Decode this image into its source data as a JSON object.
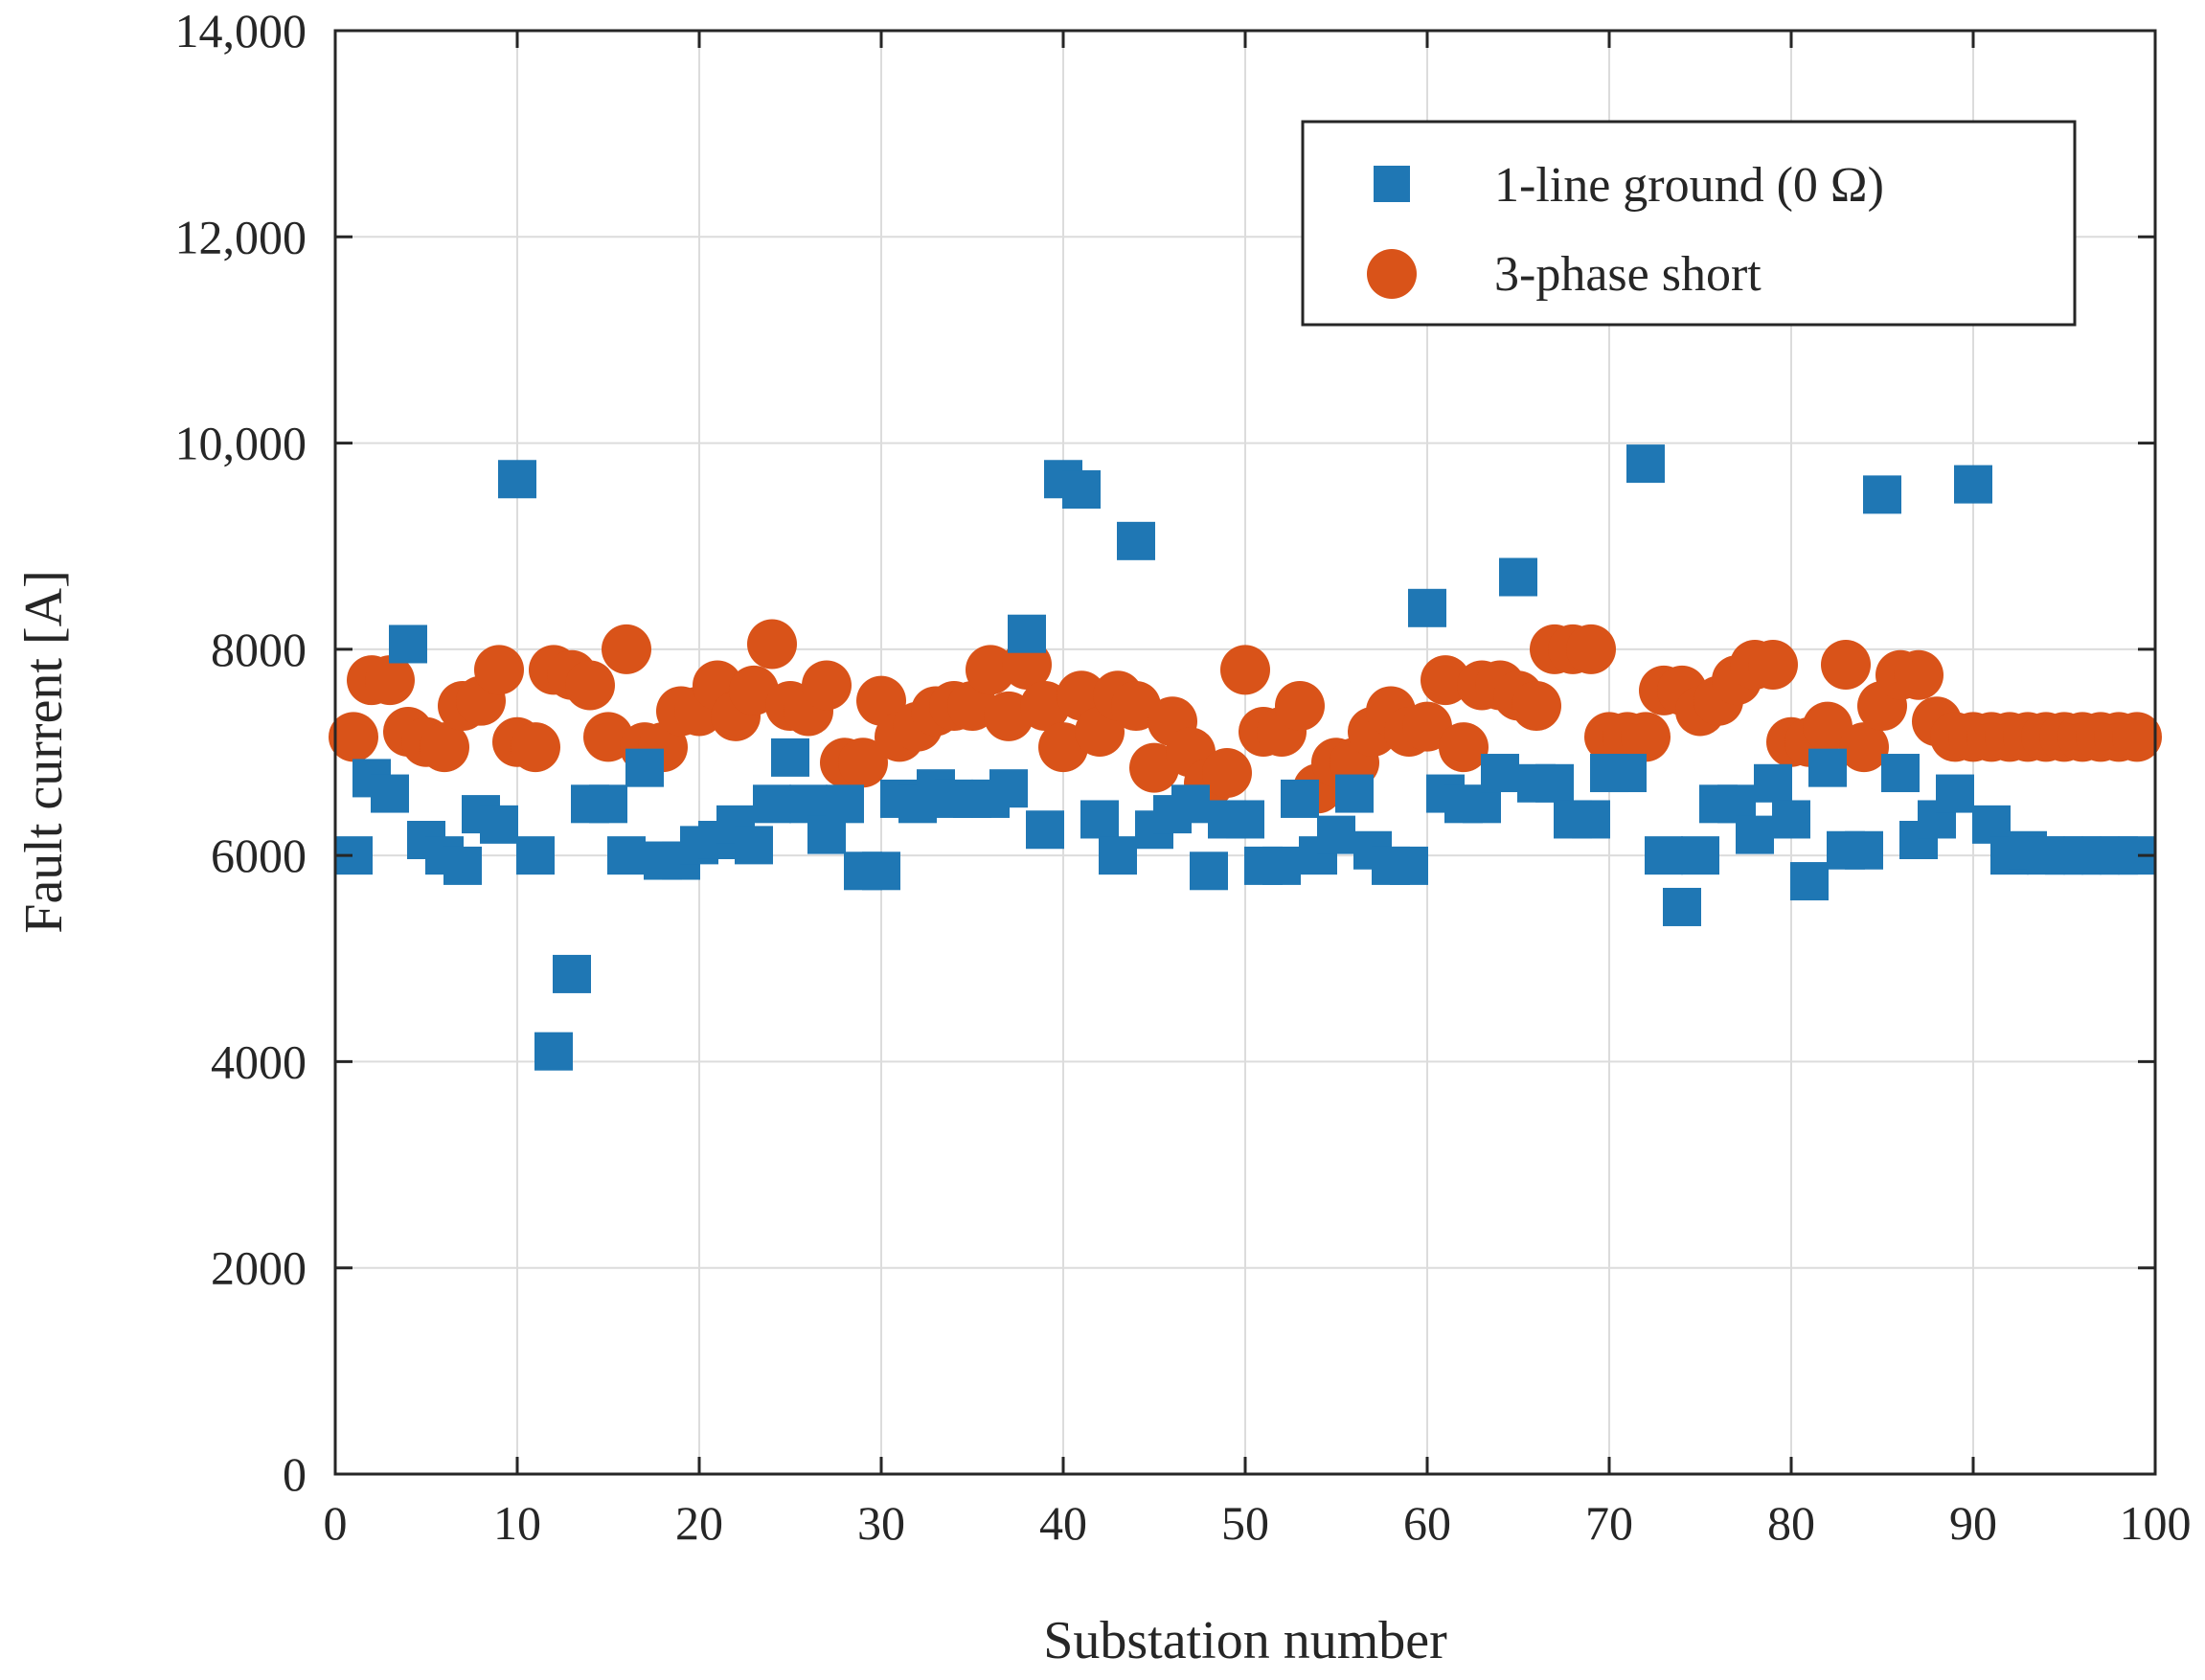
{
  "chart_data": {
    "type": "scatter",
    "title": "",
    "xlabel": "Substation number",
    "ylabel": "Fault current [A]",
    "xlim": [
      0,
      100
    ],
    "ylim": [
      0,
      14000
    ],
    "grid": true,
    "legend_position": "top-right",
    "x_ticks": [
      0,
      10,
      20,
      30,
      40,
      50,
      60,
      70,
      80,
      90,
      100
    ],
    "x_tick_labels": [
      "0",
      "10",
      "20",
      "30",
      "40",
      "50",
      "60",
      "70",
      "80",
      "90",
      "100"
    ],
    "y_ticks": [
      0,
      2000,
      4000,
      6000,
      8000,
      10000,
      12000,
      14000
    ],
    "y_tick_labels": [
      "0",
      "2000",
      "4000",
      "6000",
      "8000",
      "10,000",
      "12,000",
      "14,000"
    ],
    "series": [
      {
        "name": "1-line ground (0 Ω)",
        "marker": "square",
        "color": "#1f77b4",
        "x": [
          1,
          2,
          3,
          4,
          5,
          6,
          7,
          8,
          9,
          10,
          11,
          12,
          13,
          14,
          15,
          16,
          17,
          18,
          19,
          20,
          21,
          22,
          23,
          24,
          25,
          26,
          27,
          28,
          29,
          30,
          31,
          32,
          33,
          34,
          35,
          36,
          37,
          38,
          39,
          40,
          41,
          42,
          43,
          44,
          45,
          46,
          47,
          48,
          49,
          50,
          51,
          52,
          53,
          54,
          55,
          56,
          57,
          58,
          59,
          60,
          61,
          62,
          63,
          64,
          65,
          66,
          67,
          68,
          69,
          70,
          71,
          72,
          73,
          74,
          75,
          76,
          77,
          78,
          79,
          80,
          81,
          82,
          83,
          84,
          85,
          86,
          87,
          88,
          89,
          90,
          91,
          92,
          93,
          94,
          95,
          96,
          97,
          98,
          99
        ],
        "y": [
          6000,
          6750,
          6600,
          8050,
          6150,
          6000,
          5900,
          6400,
          6300,
          9650,
          6000,
          4100,
          4850,
          6500,
          6500,
          6000,
          6850,
          5950,
          5950,
          6100,
          6150,
          6300,
          6100,
          6500,
          6950,
          6500,
          6200,
          6500,
          5850,
          5850,
          6550,
          6500,
          6650,
          6550,
          6550,
          6550,
          6650,
          8150,
          6250,
          9650,
          9550,
          6350,
          6000,
          9050,
          6250,
          6400,
          6500,
          5850,
          6350,
          6350,
          5900,
          5900,
          6550,
          6000,
          6200,
          6600,
          6050,
          5900,
          5900,
          8400,
          6600,
          6500,
          6500,
          6800,
          8700,
          6700,
          6700,
          6350,
          6350,
          6800,
          6800,
          9800,
          6000,
          5500,
          6000,
          6500,
          6500,
          6200,
          6700,
          6350,
          5750,
          6850,
          6050,
          6050,
          9500,
          6800,
          6150,
          6350,
          6600,
          9600,
          6300,
          6000,
          6050,
          6000,
          6000,
          6000,
          6000,
          6000,
          6000
        ]
      },
      {
        "name": "3-phase short",
        "marker": "circle",
        "color": "#d95319",
        "x": [
          1,
          2,
          3,
          4,
          5,
          6,
          7,
          8,
          9,
          10,
          11,
          12,
          13,
          14,
          15,
          16,
          17,
          18,
          19,
          20,
          21,
          22,
          23,
          24,
          25,
          26,
          27,
          28,
          29,
          30,
          31,
          32,
          33,
          34,
          35,
          36,
          37,
          38,
          39,
          40,
          41,
          42,
          43,
          44,
          45,
          46,
          47,
          48,
          49,
          50,
          51,
          52,
          53,
          54,
          55,
          56,
          57,
          58,
          59,
          60,
          61,
          62,
          63,
          64,
          65,
          66,
          67,
          68,
          69,
          70,
          71,
          72,
          73,
          74,
          75,
          76,
          77,
          78,
          79,
          80,
          81,
          82,
          83,
          84,
          85,
          86,
          87,
          88,
          89,
          90,
          91,
          92,
          93,
          94,
          95,
          96,
          97,
          98,
          99
        ],
        "y": [
          7150,
          7700,
          7700,
          7200,
          7100,
          7050,
          7450,
          7500,
          7800,
          7100,
          7050,
          7800,
          7750,
          7650,
          7150,
          8000,
          7050,
          7050,
          7400,
          7400,
          7650,
          7350,
          7600,
          8050,
          7450,
          7400,
          7650,
          6900,
          6900,
          7500,
          7150,
          7250,
          7400,
          7450,
          7450,
          7800,
          7350,
          7850,
          7450,
          7050,
          7550,
          7200,
          7550,
          7450,
          6850,
          7300,
          7000,
          6700,
          6800,
          7800,
          7200,
          7200,
          7450,
          6650,
          6900,
          6900,
          7200,
          7400,
          7200,
          7250,
          7700,
          7050,
          7650,
          7650,
          7550,
          7450,
          8000,
          8000,
          8000,
          7150,
          7150,
          7150,
          7600,
          7600,
          7400,
          7500,
          7700,
          7850,
          7850,
          7100,
          7100,
          7250,
          7850,
          7050,
          7450,
          7750,
          7750,
          7300,
          7150,
          7150,
          7150,
          7150,
          7150,
          7150,
          7150,
          7150,
          7150,
          7150,
          7150
        ]
      }
    ]
  }
}
